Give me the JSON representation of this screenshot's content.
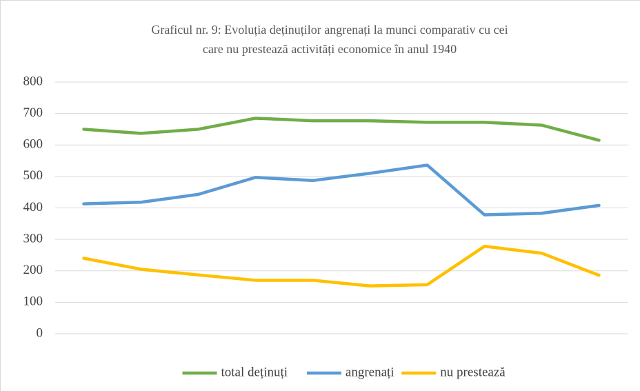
{
  "chart_data": {
    "type": "line",
    "title": [
      "Graficul nr. 9: Evoluția deținuților angrenați  la munci comparativ cu cei",
      "care nu prestează activități economice  în anul 1940"
    ],
    "categories": [
      null,
      null,
      null,
      null,
      null,
      null,
      null,
      null,
      null,
      null
    ],
    "series": [
      {
        "name": "total deținuți",
        "color": "#70ad47",
        "values": [
          650,
          637,
          650,
          685,
          677,
          677,
          672,
          672,
          663,
          615
        ]
      },
      {
        "name": "angrenați",
        "color": "#5b9bd5",
        "values": [
          413,
          418,
          443,
          497,
          487,
          510,
          536,
          378,
          383,
          408
        ]
      },
      {
        "name": "nu prestează",
        "color": "#ffc000",
        "values": [
          240,
          205,
          187,
          170,
          170,
          152,
          156,
          278,
          256,
          186
        ]
      }
    ],
    "ylim": [
      0,
      800
    ],
    "yticks": [
      0,
      100,
      200,
      300,
      400,
      500,
      600,
      700,
      800
    ],
    "grid": true,
    "legend": "bottom"
  }
}
